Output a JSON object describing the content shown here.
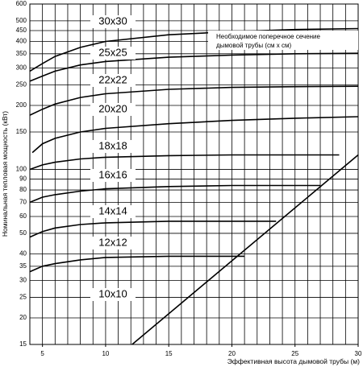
{
  "chart_data": {
    "type": "line",
    "y_label": "Номинальная тепловая мощность (кВт)",
    "x_label": "Эффективная высота дымовой трубы (м)",
    "note": [
      "Необходимое поперечное сечение",
      "дымовой трубы (см x см)"
    ],
    "xlim": [
      4,
      30
    ],
    "xticks": [
      5,
      10,
      15,
      20,
      25,
      30
    ],
    "x_grid": [
      5,
      6,
      7,
      8,
      9,
      10,
      11,
      12,
      13,
      14,
      15,
      16,
      17,
      18,
      19,
      20,
      21,
      22,
      23,
      24,
      25,
      26,
      27,
      28,
      29,
      30
    ],
    "ylim": [
      15,
      600
    ],
    "log_y": true,
    "yticks": [
      15,
      20,
      25,
      30,
      35,
      40,
      50,
      60,
      70,
      80,
      90,
      100,
      150,
      200,
      250,
      300,
      350,
      400,
      450,
      500,
      600
    ],
    "grid": true,
    "color": "#000000",
    "series": [
      {
        "name": "30x30",
        "x": [
          4,
          5,
          6,
          8,
          10,
          15,
          20,
          25,
          30
        ],
        "values": [
          290,
          315,
          340,
          375,
          400,
          430,
          445,
          455,
          460
        ]
      },
      {
        "name": "25x25",
        "x": [
          4,
          5,
          6,
          8,
          10,
          15,
          20,
          25,
          30
        ],
        "values": [
          260,
          275,
          290,
          310,
          322,
          337,
          345,
          350,
          352
        ]
      },
      {
        "name": "22x22",
        "x": [
          4,
          5,
          6,
          8,
          10,
          15,
          20,
          25,
          30
        ],
        "values": [
          180,
          192,
          203,
          218,
          227,
          238,
          243,
          245,
          246
        ]
      },
      {
        "name": "20x20",
        "x": [
          4.2,
          5,
          6,
          8,
          10,
          15,
          20,
          25,
          30
        ],
        "values": [
          120,
          132,
          140,
          150,
          156,
          164,
          170,
          174,
          177
        ]
      },
      {
        "name": "18x18",
        "x": [
          4,
          5,
          6,
          8,
          10,
          15,
          20,
          28.5
        ],
        "values": [
          100,
          105,
          108,
          112,
          114,
          116,
          117,
          117
        ]
      },
      {
        "name": "16x16",
        "x": [
          4,
          5,
          6,
          8,
          10,
          15,
          20,
          27
        ],
        "values": [
          70,
          74,
          76,
          79,
          81,
          83,
          84,
          84
        ]
      },
      {
        "name": "14x14",
        "x": [
          4,
          5,
          6,
          8,
          10,
          15,
          23.5
        ],
        "values": [
          48,
          51,
          53,
          55,
          56,
          57,
          57
        ]
      },
      {
        "name": "12x12",
        "x": [
          4,
          5,
          6,
          8,
          10,
          15,
          21
        ],
        "values": [
          33,
          35,
          36,
          37.5,
          38.5,
          39,
          39
        ]
      }
    ],
    "extra_label": "10x10",
    "boundary": {
      "x": [
        12.1,
        30
      ],
      "values": [
        15,
        117
      ]
    }
  }
}
